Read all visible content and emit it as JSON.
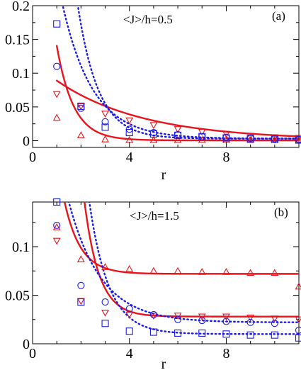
{
  "chart_data": [
    {
      "type": "scatter",
      "panel_label": "(a)",
      "annotation": "<J>/h=0.5",
      "xlabel": "r",
      "ylabel": "",
      "xlim": [
        0,
        11
      ],
      "ylim": [
        -0.01,
        0.2
      ],
      "xticks": [
        0,
        4,
        8
      ],
      "xtick_labels": [
        "0",
        "4",
        "8"
      ],
      "yticks": [
        0,
        0.05,
        0.1,
        0.15,
        0.2
      ],
      "ytick_labels": [
        "0",
        "0.05",
        "0.1",
        "0.15",
        "0.2"
      ],
      "grid": false,
      "colors": {
        "red": "#e8141c",
        "blue": "#1a1ae6"
      },
      "series": [
        {
          "marker": "triangle-down",
          "color": "red",
          "style": "solid-fit",
          "x": [
            1,
            2,
            3,
            4,
            5,
            6,
            7,
            8,
            9,
            10,
            11
          ],
          "y": [
            0.069,
            0.051,
            0.04,
            0.03,
            0.023,
            0.017,
            0.013,
            0.01,
            0.007,
            0.005,
            0.004
          ],
          "fit": {
            "a": 0.088,
            "b": 0.28,
            "c": 0.001
          }
        },
        {
          "marker": "triangle-up",
          "color": "red",
          "style": "solid-fit",
          "x": [
            1,
            2,
            3,
            4,
            5,
            6,
            7,
            8,
            9,
            10,
            11
          ],
          "y": [
            0.034,
            0.008,
            0.002,
            0.001,
            0.001,
            0.001,
            0.001,
            0.001,
            0.001,
            0.001,
            0.001
          ],
          "fit": {
            "a": 0.14,
            "b": 1.45,
            "c": 0.0005
          }
        },
        {
          "marker": "square",
          "color": "blue",
          "style": "dotted-fit",
          "x": [
            1,
            2,
            3,
            4,
            5,
            6,
            7,
            8,
            9,
            10,
            11
          ],
          "y": [
            0.173,
            0.051,
            0.02,
            0.012,
            0.01,
            0.008,
            0.006,
            0.004,
            0.003,
            0.002,
            0.001
          ],
          "fit": {
            "a": 0.55,
            "b": 1.18,
            "c": 0.003
          }
        },
        {
          "marker": "circle",
          "color": "blue",
          "style": "dotted-fit",
          "x": [
            1,
            2,
            3,
            4,
            5,
            6,
            7,
            8,
            9,
            10,
            11
          ],
          "y": [
            0.11,
            0.048,
            0.028,
            0.017,
            0.012,
            0.009,
            0.006,
            0.005,
            0.004,
            0.003,
            0.002
          ],
          "fit": {
            "a": 0.24,
            "b": 0.8,
            "c": 0.003
          }
        }
      ]
    },
    {
      "type": "scatter",
      "panel_label": "(b)",
      "annotation": "<J>/h=1.5",
      "xlabel": "r",
      "ylabel": "",
      "xlim": [
        0,
        11
      ],
      "ylim": [
        0,
        0.146
      ],
      "xticks": [
        0,
        4,
        8
      ],
      "xtick_labels": [
        "0",
        "4",
        "8"
      ],
      "yticks": [
        0,
        0.05,
        0.1
      ],
      "ytick_labels": [
        "0",
        "0.05",
        "0.1"
      ],
      "grid": false,
      "colors": {
        "red": "#e8141c",
        "blue": "#1a1ae6"
      },
      "series": [
        {
          "marker": "triangle-up",
          "color": "red",
          "style": "solid-fit",
          "x": [
            1,
            2,
            3,
            4,
            5,
            6,
            7,
            8,
            9,
            10,
            11
          ],
          "y": [
            0.12,
            0.087,
            0.079,
            0.077,
            0.075,
            0.075,
            0.074,
            0.074,
            0.073,
            0.073,
            0.059
          ],
          "fit": {
            "a": 0.12,
            "b": 1.5,
            "c": 0.072
          }
        },
        {
          "marker": "triangle-down",
          "color": "red",
          "style": "solid-fit",
          "x": [
            1,
            2,
            3,
            4,
            5,
            6,
            7,
            8,
            9,
            10,
            11
          ],
          "y": [
            0.106,
            0.044,
            0.032,
            0.03,
            0.029,
            0.029,
            0.028,
            0.028,
            0.027,
            0.026,
            0.025
          ],
          "fit": {
            "a": 0.78,
            "b": 1.65,
            "c": 0.028
          }
        },
        {
          "marker": "circle",
          "color": "blue",
          "style": "dotted-fit",
          "x": [
            1,
            2,
            3,
            4,
            5,
            6,
            7,
            8,
            9,
            10,
            11
          ],
          "y": [
            0.122,
            0.06,
            0.043,
            0.036,
            0.03,
            0.025,
            0.024,
            0.023,
            0.022,
            0.021,
            0.014
          ],
          "fit": {
            "a": 0.18,
            "b": 0.75,
            "c": 0.022
          }
        },
        {
          "marker": "square",
          "color": "blue",
          "style": "dotted-fit",
          "x": [
            1,
            2,
            3,
            4,
            5,
            6,
            7,
            8,
            9,
            10,
            11
          ],
          "y": [
            0.146,
            0.043,
            0.021,
            0.013,
            0.012,
            0.011,
            0.011,
            0.01,
            0.009,
            0.009,
            0.006
          ],
          "fit": {
            "a": 0.73,
            "b": 1.25,
            "c": 0.01
          }
        }
      ]
    }
  ]
}
